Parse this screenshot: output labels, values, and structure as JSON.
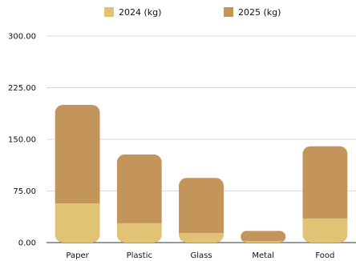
{
  "chart_data": {
    "type": "bar",
    "stacked": true,
    "categories": [
      "Paper",
      "Plastic",
      "Glass",
      "Metal",
      "Food"
    ],
    "series": [
      {
        "name": "2024 (kg)",
        "values": [
          57,
          28,
          14,
          2,
          35
        ],
        "color": "#E0C374"
      },
      {
        "name": "2025 (kg)",
        "values": [
          143,
          100,
          80,
          15,
          105
        ],
        "color": "#C4955A"
      }
    ],
    "y_ticks": [
      "0.00",
      "75.00",
      "150.00",
      "225.00",
      "300.00"
    ],
    "ylim": [
      0,
      300
    ],
    "grid": true,
    "legend_position": "top-center"
  }
}
